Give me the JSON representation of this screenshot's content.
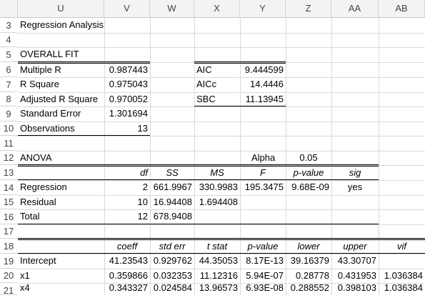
{
  "columns": [
    "U",
    "V",
    "W",
    "X",
    "Y",
    "Z",
    "AA",
    "AB"
  ],
  "rows": [
    "3",
    "4",
    "5",
    "6",
    "7",
    "8",
    "9",
    "10",
    "11",
    "12",
    "13",
    "14",
    "15",
    "16",
    "17",
    "18",
    "19",
    "20",
    "21"
  ],
  "title": "Regression Analysis",
  "overall_fit": {
    "heading": "OVERALL FIT",
    "labels": [
      "Multiple R",
      "R Square",
      "Adjusted R Square",
      "Standard Error",
      "Observations"
    ],
    "values": [
      "0.987443",
      "0.975043",
      "0.970052",
      "1.301694",
      "13"
    ],
    "info_labels": [
      "AIC",
      "AICc",
      "SBC"
    ],
    "info_values": [
      "9.444599",
      "14.4446",
      "11.13945"
    ]
  },
  "anova": {
    "heading": "ANOVA",
    "alpha_label": "Alpha",
    "alpha_value": "0.05",
    "headers": [
      "df",
      "SS",
      "MS",
      "F",
      "p-value",
      "sig"
    ],
    "rows": [
      {
        "label": "Regression",
        "df": "2",
        "ss": "661.9967",
        "ms": "330.9983",
        "f": "195.3475",
        "p": "9.68E-09",
        "sig": "yes"
      },
      {
        "label": "Residual",
        "df": "10",
        "ss": "16.94408",
        "ms": "1.694408",
        "f": "",
        "p": "",
        "sig": ""
      },
      {
        "label": "Total",
        "df": "12",
        "ss": "678.9408",
        "ms": "",
        "f": "",
        "p": "",
        "sig": ""
      }
    ]
  },
  "coefficients": {
    "headers": [
      "coeff",
      "std err",
      "t stat",
      "p-value",
      "lower",
      "upper",
      "vif"
    ],
    "rows": [
      {
        "label": "Intercept",
        "vals": [
          "41.23543",
          "0.929762",
          "44.35053",
          "8.17E-13",
          "39.16379",
          "43.30707",
          ""
        ]
      },
      {
        "label": "x1",
        "vals": [
          "0.359866",
          "0.032353",
          "11.12316",
          "5.94E-07",
          "0.28778",
          "0.431953",
          "1.036384"
        ]
      },
      {
        "label": "x4",
        "vals": [
          "0.343327",
          "0.024584",
          "13.96573",
          "6.93E-08",
          "0.288552",
          "0.398103",
          "1.036384"
        ]
      }
    ]
  }
}
